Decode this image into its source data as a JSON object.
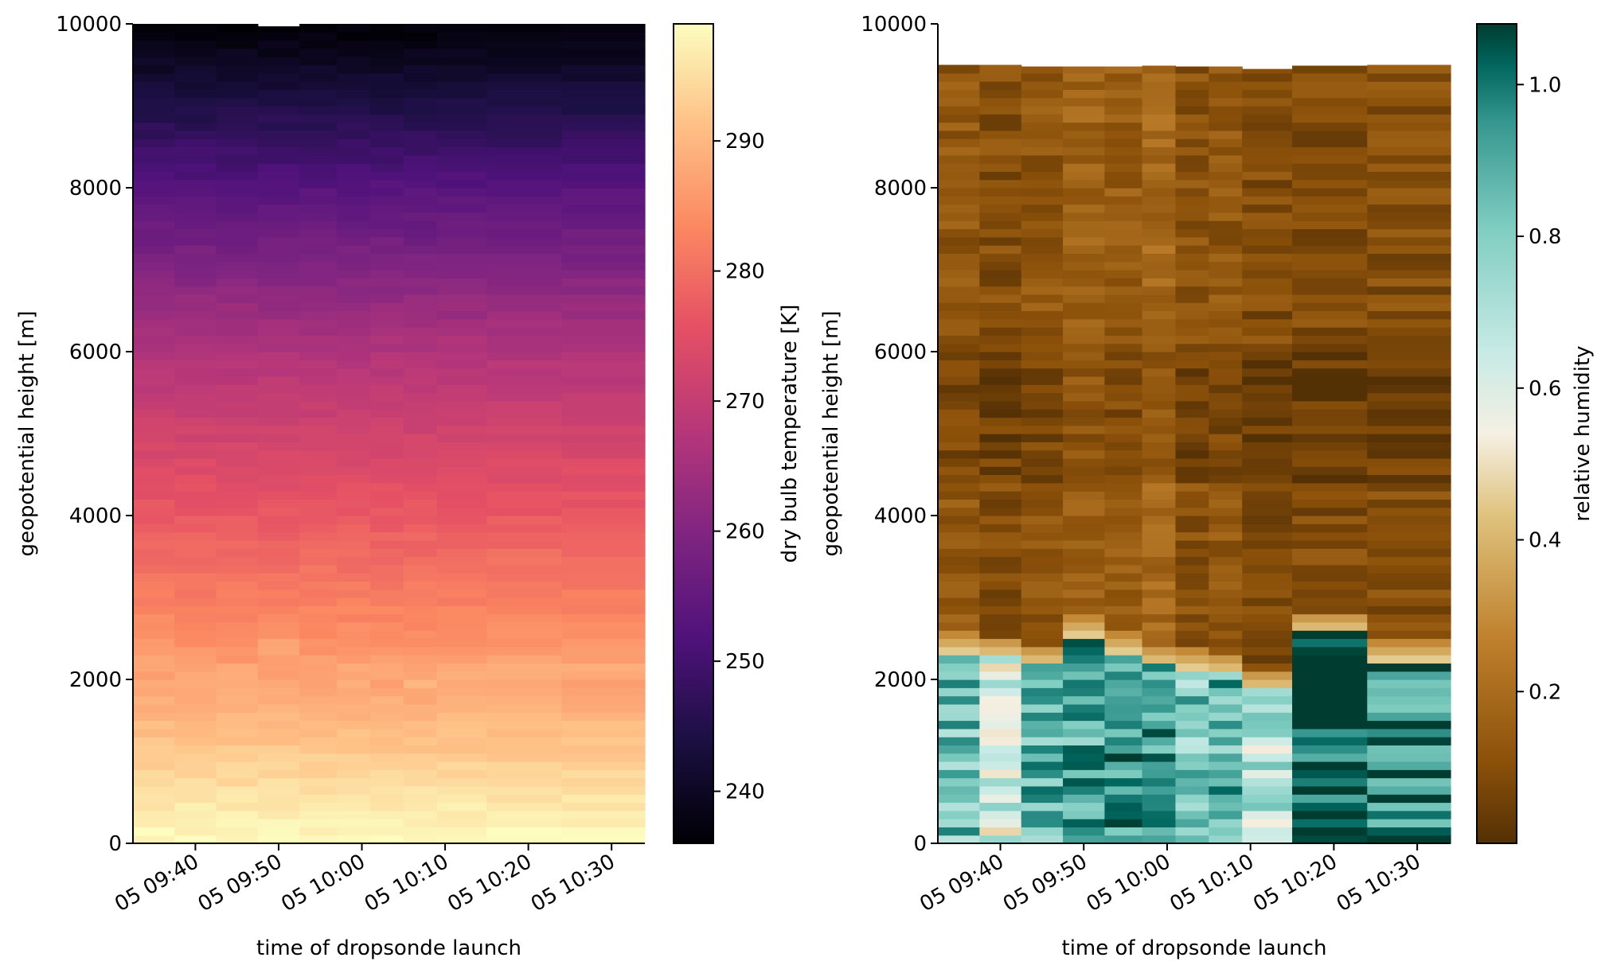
{
  "chart_data": [
    {
      "type": "heatmap",
      "variable": "dry bulb temperature",
      "xlabel": "time of dropsonde launch",
      "ylabel": "geopotential height [m]",
      "colorbar_label": "dry bulb temperature [K]",
      "colormap": "magma",
      "clim": [
        236,
        299
      ],
      "colorbar_ticks": [
        "240",
        "250",
        "260",
        "270",
        "280",
        "290"
      ],
      "x_ticks": [
        "05 09:40",
        "05 09:50",
        "05 10:00",
        "05 10:10",
        "05 10:20",
        "05 10:30"
      ],
      "y_ticks": [
        "0",
        "2000",
        "4000",
        "6000",
        "8000",
        "10000"
      ],
      "ylim": [
        0,
        10000
      ],
      "sondes": [
        {
          "launch": "09:35",
          "boundary_height": 2350,
          "top_height": 10000
        },
        {
          "launch": "09:40",
          "boundary_height": 2250,
          "top_height": 10000
        },
        {
          "launch": "09:45",
          "boundary_height": 2200,
          "top_height": 10000
        },
        {
          "launch": "09:50",
          "boundary_height": 2550,
          "top_height": 9970
        },
        {
          "launch": "09:55",
          "boundary_height": 2350,
          "top_height": 10000
        },
        {
          "launch": "09:59",
          "boundary_height": 2200,
          "top_height": 10000
        },
        {
          "launch": "10:03",
          "boundary_height": 2300,
          "top_height": 10000
        },
        {
          "launch": "10:07",
          "boundary_height": 2150,
          "top_height": 10000
        },
        {
          "launch": "10:11",
          "boundary_height": 2300,
          "top_height": 10000
        },
        {
          "launch": "10:19",
          "boundary_height": 2300,
          "top_height": 10000
        },
        {
          "launch": "10:29",
          "boundary_height": 2250,
          "top_height": 10000
        }
      ],
      "temperature_profile": {
        "surface": 299,
        "at_2000m": 287,
        "at_4000m": 277,
        "at_6000m": 267,
        "at_8000m": 253,
        "at_10000m": 236
      }
    },
    {
      "type": "heatmap",
      "variable": "relative humidity",
      "xlabel": "time of dropsonde launch",
      "ylabel": "geopotential height [m]",
      "colorbar_label": "relative humidity",
      "colormap": "BrBG",
      "clim": [
        0.0,
        1.08
      ],
      "colorbar_ticks": [
        "0.2",
        "0.4",
        "0.6",
        "0.8",
        "1.0"
      ],
      "x_ticks": [
        "05 09:40",
        "05 09:50",
        "05 10:00",
        "05 10:10",
        "05 10:20",
        "05 10:30"
      ],
      "y_ticks": [
        "0",
        "2000",
        "4000",
        "6000",
        "8000",
        "10000"
      ],
      "ylim": [
        0,
        10000
      ],
      "sondes": [
        {
          "launch": "09:35",
          "boundary_height": 2350,
          "top_height": 9500,
          "lower_rh": 0.84,
          "upper_rh": 0.13
        },
        {
          "launch": "09:40",
          "boundary_height": 2300,
          "top_height": 9500,
          "lower_rh": 0.62,
          "upper_rh": 0.1
        },
        {
          "launch": "09:45",
          "boundary_height": 2200,
          "top_height": 9480,
          "lower_rh": 0.86,
          "upper_rh": 0.13
        },
        {
          "launch": "09:50",
          "boundary_height": 2550,
          "top_height": 9480,
          "lower_rh": 0.9,
          "upper_rh": 0.17
        },
        {
          "launch": "09:55",
          "boundary_height": 2350,
          "top_height": 9480,
          "lower_rh": 0.97,
          "upper_rh": 0.14
        },
        {
          "launch": "09:59",
          "boundary_height": 2200,
          "top_height": 9490,
          "lower_rh": 0.93,
          "upper_rh": 0.19
        },
        {
          "launch": "10:03",
          "boundary_height": 2150,
          "top_height": 9480,
          "lower_rh": 0.82,
          "upper_rh": 0.11
        },
        {
          "launch": "10:07",
          "boundary_height": 2100,
          "top_height": 9480,
          "lower_rh": 0.87,
          "upper_rh": 0.13
        },
        {
          "launch": "10:11",
          "boundary_height": 1900,
          "top_height": 9450,
          "lower_rh": 0.68,
          "upper_rh": 0.09
        },
        {
          "launch": "10:19",
          "boundary_height": 2600,
          "top_height": 9490,
          "lower_rh": 1.05,
          "upper_rh": 0.09
        },
        {
          "launch": "10:29",
          "boundary_height": 2250,
          "top_height": 9500,
          "lower_rh": 0.97,
          "upper_rh": 0.1
        }
      ]
    }
  ]
}
